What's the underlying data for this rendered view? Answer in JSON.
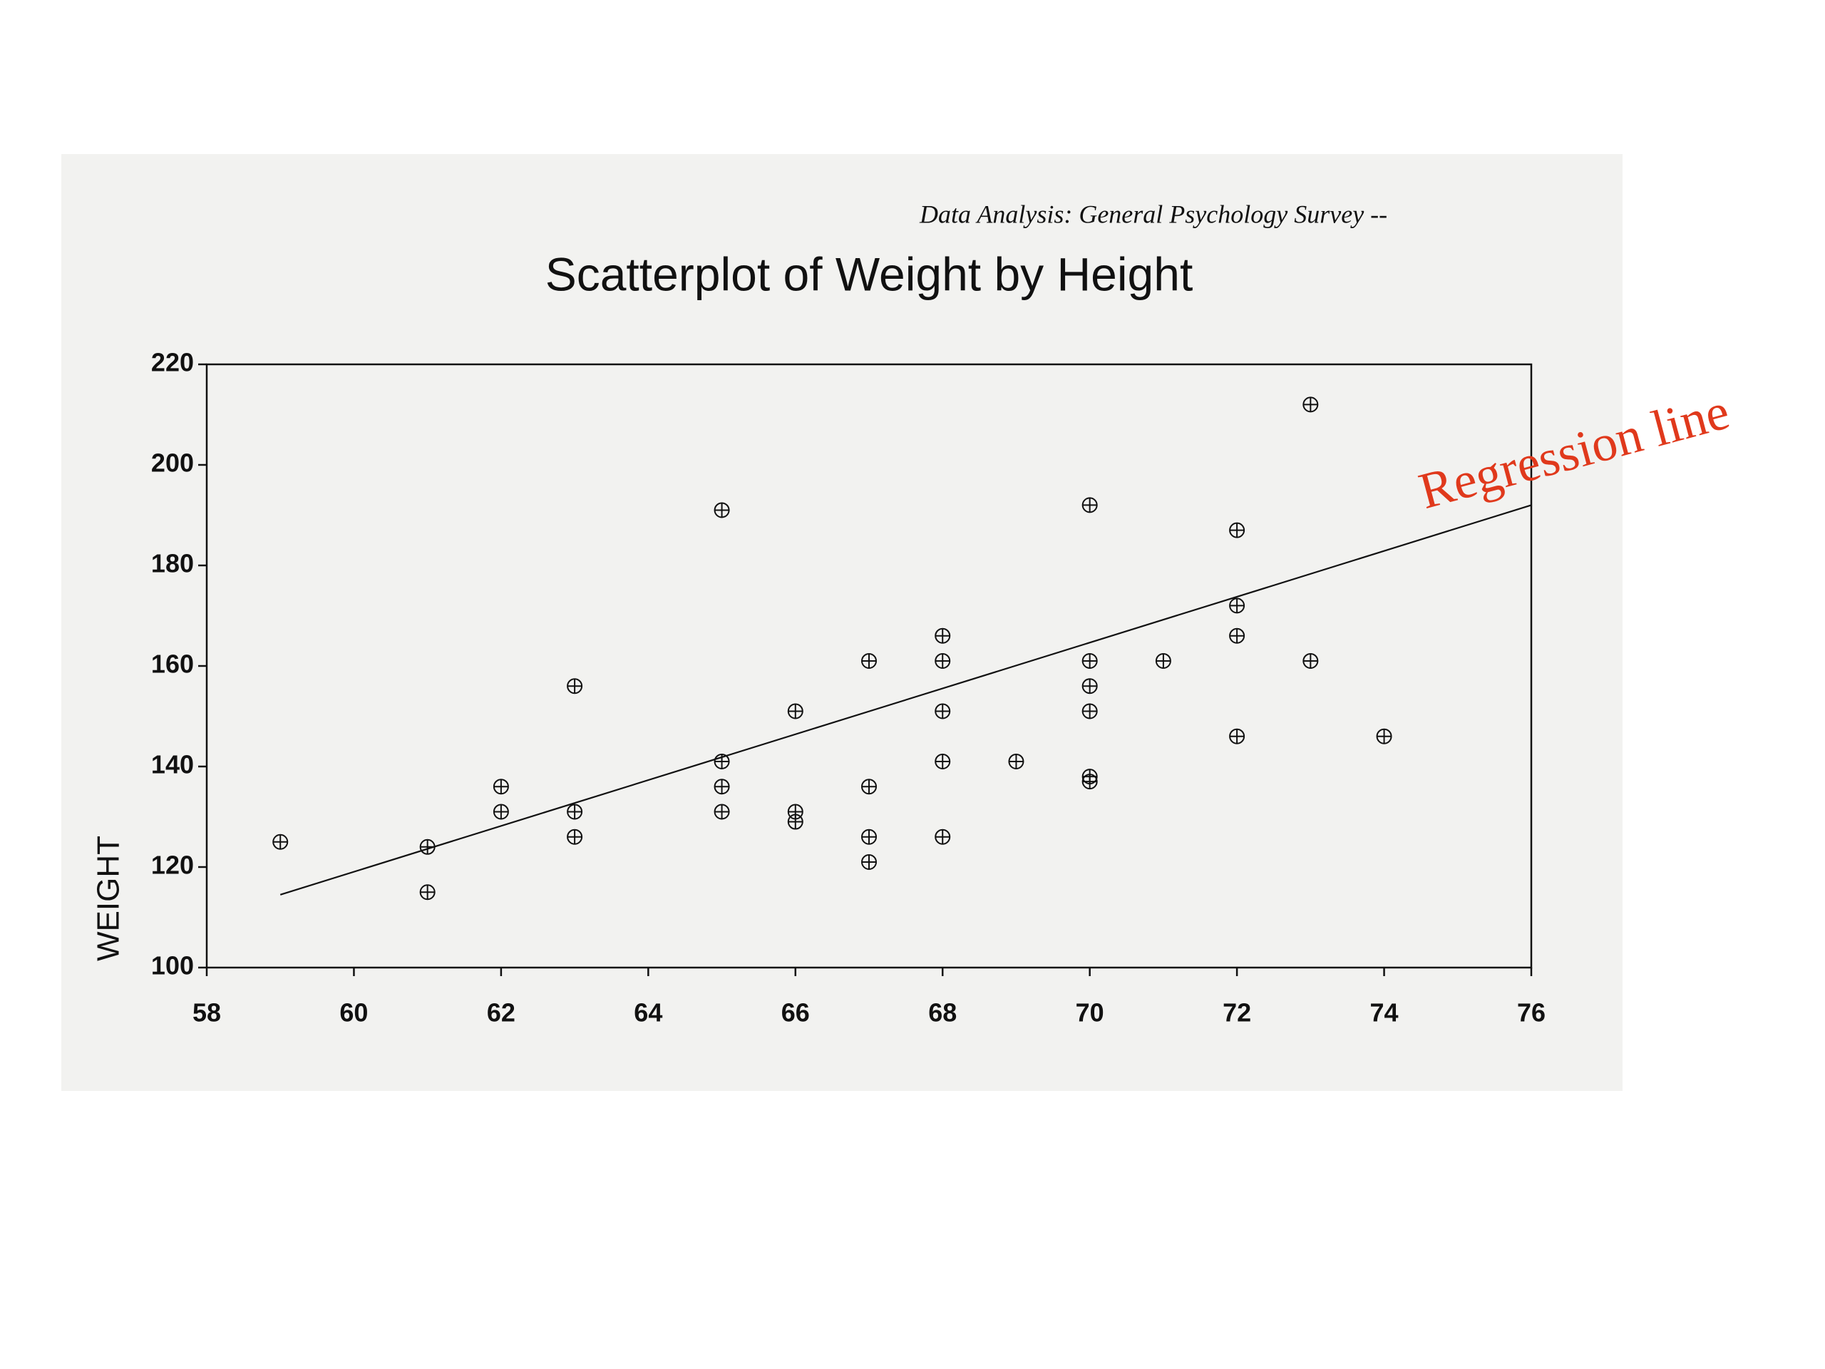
{
  "chart_data": {
    "type": "scatter",
    "header": "Data Analysis:  General Psychology Survey --",
    "title": "Scatterplot of Weight by Height",
    "y_label": "WEIGHT",
    "annotation": "Regression line",
    "annotation_color": "#e0391c",
    "color": "#111111",
    "x": [
      59,
      61,
      61,
      62,
      62,
      63,
      63,
      63,
      65,
      65,
      65,
      65,
      66,
      66,
      66,
      67,
      67,
      67,
      67,
      68,
      68,
      68,
      68,
      68,
      69,
      70,
      70,
      70,
      70,
      70,
      70,
      71,
      72,
      72,
      72,
      72,
      73,
      73,
      74
    ],
    "y": [
      125,
      124,
      115,
      136,
      131,
      156,
      131,
      126,
      191,
      141,
      136,
      131,
      151,
      131,
      129,
      161,
      136,
      126,
      121,
      166,
      161,
      151,
      141,
      126,
      141,
      192,
      161,
      156,
      151,
      138,
      137,
      161,
      187,
      172,
      166,
      146,
      212,
      161,
      146
    ],
    "regression_line": {
      "x": [
        59,
        76
      ],
      "y": [
        114.5,
        192
      ]
    },
    "xlim": [
      58,
      76
    ],
    "xticks": [
      58,
      60,
      62,
      64,
      66,
      68,
      70,
      72,
      74,
      76
    ],
    "ylim": [
      100,
      220
    ],
    "yticks": [
      100,
      120,
      140,
      160,
      180,
      200,
      220
    ],
    "grid": false
  }
}
